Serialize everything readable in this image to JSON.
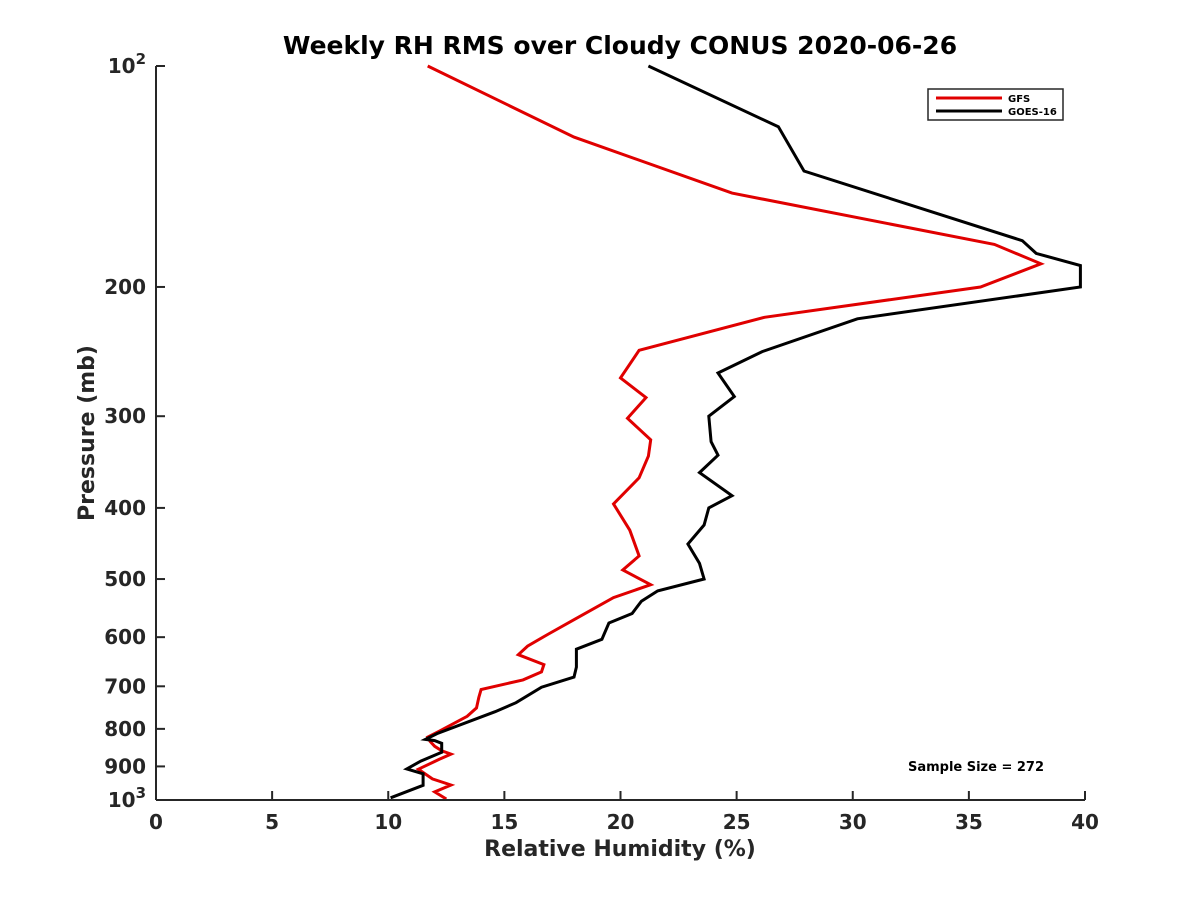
{
  "chart_data": {
    "type": "line",
    "title": "Weekly RH RMS over Cloudy CONUS 2020-06-26",
    "xlabel": "Relative Humidity (%)",
    "ylabel": "Pressure (mb)",
    "xlim": [
      0,
      40
    ],
    "ylim": [
      100,
      1000
    ],
    "y_scale": "log",
    "y_reversed": true,
    "x_ticks": [
      0,
      5,
      10,
      15,
      20,
      25,
      30,
      35,
      40
    ],
    "x_tick_labels": [
      "0",
      "5",
      "10",
      "15",
      "20",
      "25",
      "30",
      "35",
      "40"
    ],
    "y_ticks": [
      100,
      200,
      300,
      400,
      500,
      600,
      700,
      800,
      900,
      1000
    ],
    "y_tick_labels": [
      "10^2",
      "200",
      "300",
      "400",
      "500",
      "600",
      "700",
      "800",
      "900",
      "10^3"
    ],
    "grid": false,
    "legend_position": "top-right",
    "annotation": "Sample Size = 272",
    "series": [
      {
        "name": "GFS",
        "color": "#e00000",
        "points": [
          [
            11.7,
            100
          ],
          [
            18.0,
            125
          ],
          [
            24.8,
            149
          ],
          [
            36.1,
            175
          ],
          [
            38.1,
            186
          ],
          [
            35.5,
            200
          ],
          [
            26.2,
            220
          ],
          [
            20.8,
            244
          ],
          [
            20.0,
            266
          ],
          [
            21.1,
            283
          ],
          [
            20.3,
            302
          ],
          [
            21.3,
            323
          ],
          [
            21.2,
            340
          ],
          [
            20.8,
            364
          ],
          [
            19.7,
            395
          ],
          [
            20.4,
            429
          ],
          [
            20.8,
            465
          ],
          [
            20.1,
            486
          ],
          [
            21.3,
            509
          ],
          [
            19.7,
            530
          ],
          [
            18.0,
            568
          ],
          [
            16.9,
            594
          ],
          [
            16.0,
            617
          ],
          [
            15.6,
            634
          ],
          [
            16.7,
            654
          ],
          [
            16.6,
            669
          ],
          [
            15.8,
            686
          ],
          [
            14.0,
            707
          ],
          [
            13.9,
            725
          ],
          [
            13.8,
            749
          ],
          [
            13.4,
            769
          ],
          [
            12.2,
            806
          ],
          [
            11.7,
            821
          ],
          [
            11.8,
            832
          ],
          [
            12.0,
            845
          ],
          [
            12.3,
            857
          ],
          [
            12.7,
            866
          ],
          [
            12.2,
            880
          ],
          [
            11.3,
            908
          ],
          [
            11.9,
            936
          ],
          [
            12.7,
            954
          ],
          [
            12.0,
            975
          ],
          [
            12.5,
            997
          ]
        ]
      },
      {
        "name": "GOES-16",
        "color": "#000000",
        "points": [
          [
            21.2,
            100
          ],
          [
            26.8,
            121
          ],
          [
            27.9,
            139
          ],
          [
            37.3,
            173
          ],
          [
            37.9,
            180
          ],
          [
            39.8,
            187
          ],
          [
            39.8,
            200
          ],
          [
            30.2,
            221
          ],
          [
            26.1,
            245
          ],
          [
            24.2,
            262
          ],
          [
            24.9,
            282
          ],
          [
            23.8,
            300
          ],
          [
            23.9,
            325
          ],
          [
            24.2,
            339
          ],
          [
            23.4,
            358
          ],
          [
            24.8,
            385
          ],
          [
            23.8,
            400
          ],
          [
            23.6,
            422
          ],
          [
            22.9,
            448
          ],
          [
            23.4,
            476
          ],
          [
            23.6,
            500
          ],
          [
            21.6,
            519
          ],
          [
            20.9,
            536
          ],
          [
            20.5,
            557
          ],
          [
            19.5,
            574
          ],
          [
            19.2,
            604
          ],
          [
            18.1,
            623
          ],
          [
            18.1,
            659
          ],
          [
            18.0,
            680
          ],
          [
            16.6,
            702
          ],
          [
            15.5,
            737
          ],
          [
            14.6,
            758
          ],
          [
            12.1,
            812
          ],
          [
            11.6,
            827
          ],
          [
            12.0,
            830
          ],
          [
            12.3,
            837
          ],
          [
            12.3,
            861
          ],
          [
            11.4,
            885
          ],
          [
            10.8,
            907
          ],
          [
            11.5,
            921
          ],
          [
            11.5,
            955
          ],
          [
            10.1,
            993
          ]
        ]
      }
    ]
  }
}
